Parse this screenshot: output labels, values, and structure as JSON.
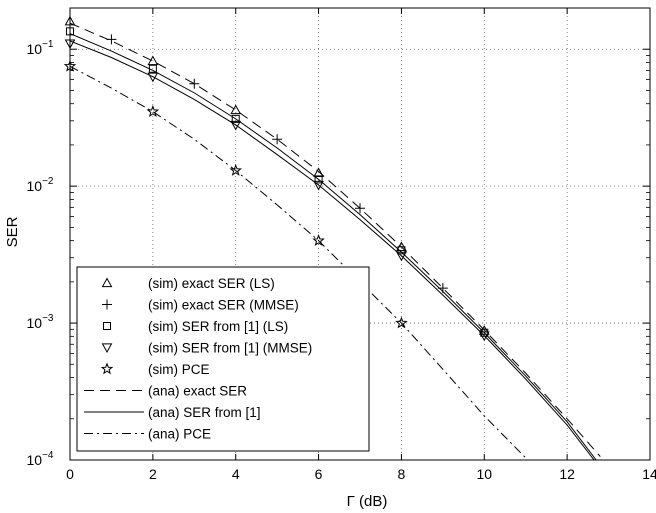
{
  "chart_data": {
    "type": "line",
    "xlabel": "Γ (dB)",
    "ylabel": "SER",
    "xlim": [
      0,
      14
    ],
    "ylim": [
      0.0001,
      0.2
    ],
    "yscale": "log",
    "grid": true,
    "legend_position": "bottom-left",
    "x_ticks": [
      "0",
      "2",
      "4",
      "6",
      "8",
      "10",
      "12",
      "14"
    ],
    "y_ticks": [
      {
        "base": "10",
        "exp": "−1",
        "value": 0.1
      },
      {
        "base": "10",
        "exp": "−2",
        "value": 0.01
      },
      {
        "base": "10",
        "exp": "−3",
        "value": 0.001
      },
      {
        "base": "10",
        "exp": "−4",
        "value": 0.0001
      }
    ],
    "series": [
      {
        "name": "(sim) exact SER (LS)",
        "kind": "marker",
        "marker": "triangle-up",
        "x": [
          0,
          2,
          4,
          6,
          8,
          10
        ],
        "y": [
          0.16,
          0.082,
          0.036,
          0.0125,
          0.0036,
          0.00088
        ]
      },
      {
        "name": "(sim) exact SER (MMSE)",
        "kind": "marker",
        "marker": "plus",
        "x": [
          1,
          3,
          5,
          7,
          9
        ],
        "y": [
          0.118,
          0.056,
          0.022,
          0.0069,
          0.0018
        ]
      },
      {
        "name": "(sim) SER from [1] (LS)",
        "kind": "marker",
        "marker": "square",
        "x": [
          0,
          2,
          4,
          6,
          8,
          10
        ],
        "y": [
          0.135,
          0.072,
          0.031,
          0.0112,
          0.0034,
          0.00085
        ]
      },
      {
        "name": "(sim) SER from [1] (MMSE)",
        "kind": "marker",
        "marker": "triangle-down",
        "x": [
          0,
          2,
          4,
          6,
          8,
          10
        ],
        "y": [
          0.11,
          0.063,
          0.028,
          0.0102,
          0.0031,
          0.00081
        ]
      },
      {
        "name": "(sim) PCE",
        "kind": "marker",
        "marker": "star",
        "x": [
          0,
          2,
          4,
          6,
          8
        ],
        "y": [
          0.075,
          0.035,
          0.013,
          0.004,
          0.001
        ]
      },
      {
        "name": "(ana) exact SER",
        "kind": "line",
        "dash": "dashed",
        "x": [
          0,
          1,
          2,
          3,
          4,
          5,
          6,
          7,
          8,
          9,
          10,
          11,
          12,
          12.8
        ],
        "y": [
          0.155,
          0.115,
          0.082,
          0.056,
          0.036,
          0.022,
          0.0128,
          0.0069,
          0.0036,
          0.0018,
          0.00089,
          0.00043,
          0.0002,
          0.000106
        ]
      },
      {
        "name": "(ana) SER from [1]",
        "kind": "line",
        "dash": "solid",
        "x": [
          0,
          1,
          2,
          3,
          4,
          5,
          6,
          7,
          8,
          9,
          10,
          11,
          12,
          12.7
        ],
        "y": [
          0.13,
          0.097,
          0.07,
          0.048,
          0.031,
          0.019,
          0.0112,
          0.0062,
          0.0033,
          0.0017,
          0.00085,
          0.00041,
          0.00019,
          0.0001
        ]
      },
      {
        "name": "",
        "kind": "line",
        "dash": "solid",
        "x": [
          0,
          1,
          2,
          3,
          4,
          5,
          6,
          7,
          8,
          9,
          10,
          11,
          12,
          12.65
        ],
        "y": [
          0.115,
          0.087,
          0.063,
          0.043,
          0.028,
          0.017,
          0.0102,
          0.0057,
          0.0031,
          0.0016,
          0.00081,
          0.00039,
          0.00018,
          0.0001
        ]
      },
      {
        "name": "(ana) PCE",
        "kind": "line",
        "dash": "dashdot",
        "x": [
          0,
          1,
          2,
          3,
          4,
          5,
          6,
          7,
          8,
          9,
          10,
          11.05
        ],
        "y": [
          0.075,
          0.052,
          0.035,
          0.022,
          0.013,
          0.0073,
          0.004,
          0.002,
          0.001,
          0.00046,
          0.00021,
          0.0001
        ]
      }
    ],
    "legend": [
      {
        "label": "(sim) exact SER (LS)",
        "glyph": "triangle-up"
      },
      {
        "label": "(sim) exact SER (MMSE)",
        "glyph": "plus"
      },
      {
        "label": "(sim) SER from [1] (LS)",
        "glyph": "square"
      },
      {
        "label": "(sim) SER from [1] (MMSE)",
        "glyph": "triangle-down"
      },
      {
        "label": "(sim) PCE",
        "glyph": "star"
      },
      {
        "label": "(ana) exact SER",
        "glyph": "dashed"
      },
      {
        "label": "(ana) SER from [1]",
        "glyph": "solid"
      },
      {
        "label": "(ana) PCE",
        "glyph": "dashdot"
      }
    ]
  }
}
